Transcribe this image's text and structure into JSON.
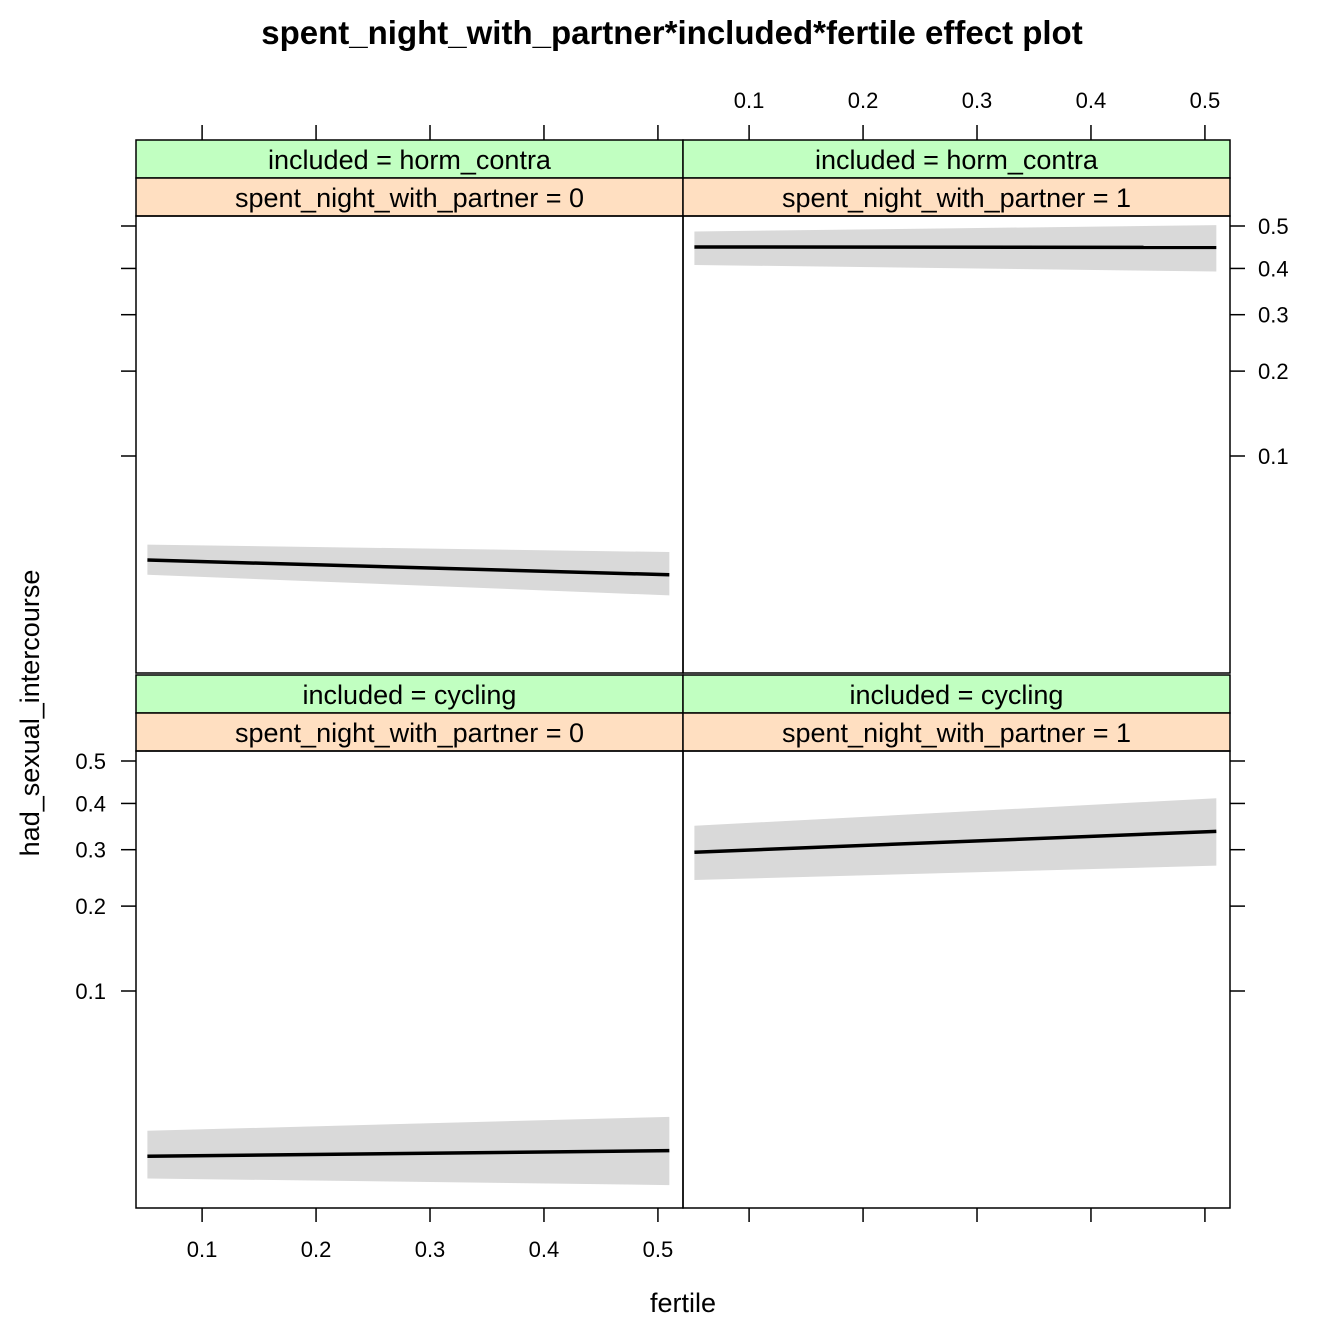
{
  "chart_data": {
    "type": "line",
    "title": "spent_night_with_partner*included*fertile effect plot",
    "xlabel": "fertile",
    "ylabel": "had_sexual_intercourse",
    "x_ticks": [
      "0.1",
      "0.2",
      "0.3",
      "0.4",
      "0.5"
    ],
    "y_ticks": [
      "0.1",
      "0.2",
      "0.3",
      "0.4",
      "0.5"
    ],
    "xlim": [
      0.042,
      0.522
    ],
    "y_scale": "logit",
    "layout": "2x2 lattice panels, x axis bottom-left and top-right, y axis top-right and bottom-left",
    "colors": {
      "strip_top": "#c1ffc1",
      "strip_bottom": "#ffdfc1",
      "band": "#d9d9d9",
      "line": "#000000"
    },
    "panels": [
      {
        "strip_included": "included = horm_contra",
        "strip_partner": "spent_night_with_partner = 0",
        "fit": [
          [
            0.052,
            0.0395
          ],
          [
            0.51,
            0.0345
          ]
        ],
        "lower": [
          [
            0.052,
            0.0345
          ],
          [
            0.51,
            0.0285
          ]
        ],
        "upper": [
          [
            0.052,
            0.0455
          ],
          [
            0.51,
            0.0425
          ]
        ]
      },
      {
        "strip_included": "included = horm_contra",
        "strip_partner": "spent_night_with_partner = 1",
        "fit": [
          [
            0.052,
            0.45
          ],
          [
            0.51,
            0.449
          ]
        ],
        "lower": [
          [
            0.052,
            0.408
          ],
          [
            0.51,
            0.393
          ]
        ],
        "upper": [
          [
            0.052,
            0.487
          ],
          [
            0.51,
            0.502
          ]
        ]
      },
      {
        "strip_included": "included = cycling",
        "strip_partner": "spent_night_with_partner = 0",
        "fit": [
          [
            0.052,
            0.0224
          ],
          [
            0.51,
            0.0236
          ]
        ],
        "lower": [
          [
            0.052,
            0.0182
          ],
          [
            0.51,
            0.0171
          ]
        ],
        "upper": [
          [
            0.052,
            0.0284
          ],
          [
            0.51,
            0.0323
          ]
        ]
      },
      {
        "strip_included": "included = cycling",
        "strip_partner": "spent_night_with_partner = 1",
        "fit": [
          [
            0.052,
            0.295
          ],
          [
            0.51,
            0.338
          ]
        ],
        "lower": [
          [
            0.052,
            0.243
          ],
          [
            0.51,
            0.269
          ]
        ],
        "upper": [
          [
            0.052,
            0.35
          ],
          [
            0.51,
            0.412
          ]
        ]
      }
    ]
  }
}
